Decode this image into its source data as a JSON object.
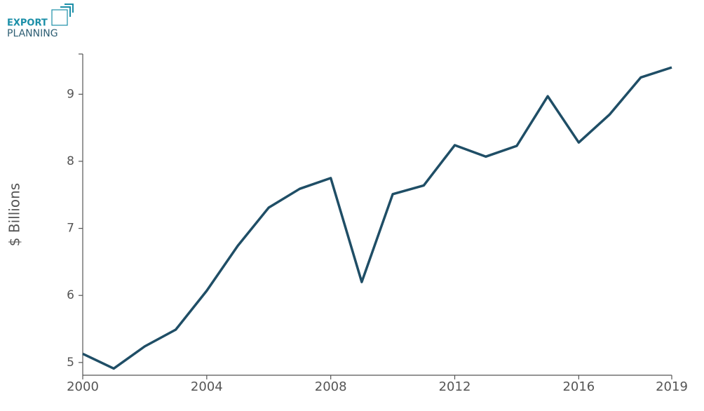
{
  "logo": {
    "line1": "EXPORT",
    "line2": "PLANNING"
  },
  "chart_data": {
    "type": "line",
    "y_label": "$ Billions",
    "x": [
      2000,
      2001,
      2002,
      2003,
      2004,
      2005,
      2006,
      2007,
      2008,
      2009,
      2010,
      2011,
      2012,
      2013,
      2014,
      2015,
      2016,
      2017,
      2018,
      2019
    ],
    "series": [
      {
        "color": "#1f4e66",
        "values": [
          5.13,
          4.91,
          5.24,
          5.49,
          6.07,
          6.74,
          7.31,
          7.59,
          7.75,
          6.2,
          7.51,
          7.64,
          8.24,
          8.07,
          8.23,
          8.97,
          8.28,
          8.7,
          9.25,
          9.4
        ]
      }
    ],
    "xlim": [
      2000,
      2019
    ],
    "xticks": [
      2000,
      2004,
      2008,
      2012,
      2016,
      2019
    ],
    "ylim": [
      4.81,
      9.6
    ],
    "yticks": [
      5,
      6,
      7,
      8,
      9
    ]
  }
}
